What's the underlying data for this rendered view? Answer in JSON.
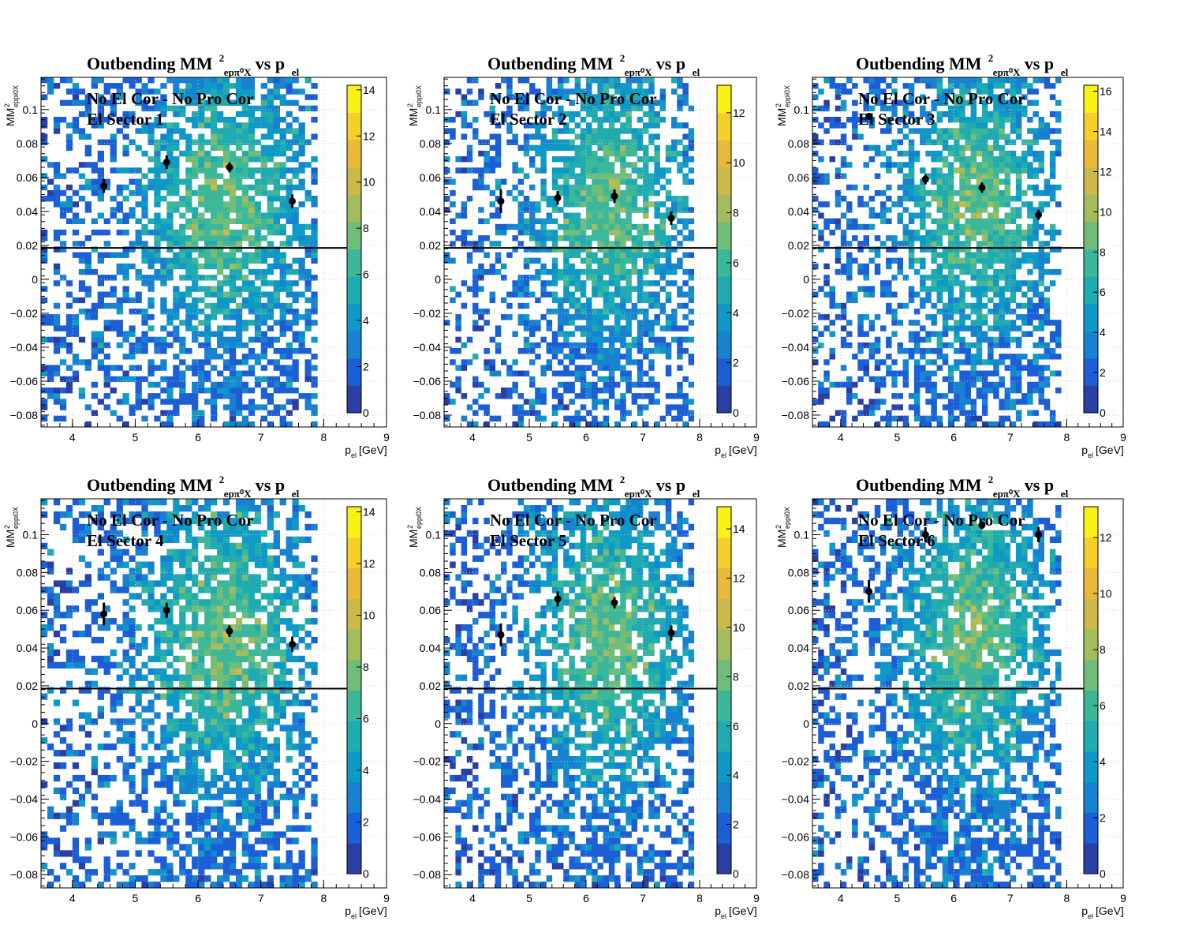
{
  "chart_data": [
    {
      "type": "heatmap",
      "title": {
        "main": "Outbending MM",
        "sup": "2",
        "sub": "epπ⁰X",
        "tail": " vs p",
        "tail_sub": "el"
      },
      "annotations": [
        "No El Cor - No Pro Cor",
        "El Sector 1"
      ],
      "xlabel": {
        "main": "p",
        "sub": "el",
        "tail": " [GeV]"
      },
      "ylabel": {
        "main": "MM",
        "sup": "2",
        "sub": "eppi0X"
      },
      "xlim": [
        3.5,
        9.0
      ],
      "ylim": [
        -0.087,
        0.119
      ],
      "xticks": [
        "4",
        "5",
        "6",
        "7",
        "8",
        "9"
      ],
      "yticks": [
        "−0.08",
        "−0.06",
        "−0.04",
        "−0.02",
        "0",
        "0.02",
        "0.04",
        "0.06",
        "0.08",
        "0.1"
      ],
      "zlim": [
        0,
        14.2
      ],
      "zticks": [
        "0",
        "2",
        "4",
        "6",
        "8",
        "10",
        "12",
        "14"
      ],
      "data_x_range": [
        3.5,
        7.9
      ],
      "cut_line_y": 0.0185,
      "points": [
        {
          "x": 4.5,
          "y": 0.055,
          "err": 0.004
        },
        {
          "x": 5.5,
          "y": 0.069,
          "err": 0.004
        },
        {
          "x": 6.5,
          "y": 0.066,
          "err": 0.003
        },
        {
          "x": 7.5,
          "y": 0.046,
          "err": 0.004
        }
      ],
      "grid": true
    },
    {
      "type": "heatmap",
      "title": {
        "main": "Outbending MM",
        "sup": "2",
        "sub": "epπ⁰X",
        "tail": " vs p",
        "tail_sub": "el"
      },
      "annotations": [
        "No El Cor - No Pro Cor",
        "El Sector 2"
      ],
      "xlabel": {
        "main": "p",
        "sub": "el",
        "tail": " [GeV]"
      },
      "ylabel": {
        "main": "MM",
        "sup": "2",
        "sub": "eppi0X"
      },
      "xlim": [
        3.5,
        9.0
      ],
      "ylim": [
        -0.087,
        0.119
      ],
      "xticks": [
        "4",
        "5",
        "6",
        "7",
        "8",
        "9"
      ],
      "yticks": [
        "−0.08",
        "−0.06",
        "−0.04",
        "−0.02",
        "0",
        "0.02",
        "0.04",
        "0.06",
        "0.08",
        "0.1"
      ],
      "zlim": [
        0,
        13.1
      ],
      "zticks": [
        "0",
        "2",
        "4",
        "6",
        "8",
        "10",
        "12"
      ],
      "data_x_range": [
        3.5,
        7.9
      ],
      "cut_line_y": 0.0185,
      "points": [
        {
          "x": 4.5,
          "y": 0.046,
          "err": 0.007
        },
        {
          "x": 5.5,
          "y": 0.048,
          "err": 0.004
        },
        {
          "x": 6.5,
          "y": 0.049,
          "err": 0.004
        },
        {
          "x": 7.5,
          "y": 0.036,
          "err": 0.004
        }
      ],
      "grid": true
    },
    {
      "type": "heatmap",
      "title": {
        "main": "Outbending MM",
        "sup": "2",
        "sub": "epπ⁰X",
        "tail": " vs p",
        "tail_sub": "el"
      },
      "annotations": [
        "No El Cor - No Pro Cor",
        "El Sector 3"
      ],
      "xlabel": {
        "main": "p",
        "sub": "el",
        "tail": " [GeV]"
      },
      "ylabel": {
        "main": "MM",
        "sup": "2",
        "sub": "eppi0X"
      },
      "xlim": [
        3.5,
        9.0
      ],
      "ylim": [
        -0.087,
        0.119
      ],
      "xticks": [
        "4",
        "5",
        "6",
        "7",
        "8",
        "9"
      ],
      "yticks": [
        "−0.08",
        "−0.06",
        "−0.04",
        "−0.02",
        "0",
        "0.02",
        "0.04",
        "0.06",
        "0.08",
        "0.1"
      ],
      "zlim": [
        0,
        16.3
      ],
      "zticks": [
        "0",
        "2",
        "4",
        "6",
        "8",
        "10",
        "12",
        "14",
        "16"
      ],
      "data_x_range": [
        3.5,
        7.9
      ],
      "cut_line_y": 0.0185,
      "points": [
        {
          "x": 4.5,
          "y": 0.096,
          "err": 0.002
        },
        {
          "x": 5.5,
          "y": 0.059,
          "err": 0.003
        },
        {
          "x": 6.5,
          "y": 0.054,
          "err": 0.003
        },
        {
          "x": 7.5,
          "y": 0.038,
          "err": 0.003
        }
      ],
      "grid": true
    },
    {
      "type": "heatmap",
      "title": {
        "main": "Outbending MM",
        "sup": "2",
        "sub": "epπ⁰X",
        "tail": " vs p",
        "tail_sub": "el"
      },
      "annotations": [
        "No El Cor - No Pro Cor",
        "El Sector 4"
      ],
      "xlabel": {
        "main": "p",
        "sub": "el",
        "tail": " [GeV]"
      },
      "ylabel": {
        "main": "MM",
        "sup": "2",
        "sub": "eppi0X"
      },
      "xlim": [
        3.5,
        9.0
      ],
      "ylim": [
        -0.087,
        0.119
      ],
      "xticks": [
        "4",
        "5",
        "6",
        "7",
        "8",
        "9"
      ],
      "yticks": [
        "−0.08",
        "−0.06",
        "−0.04",
        "−0.02",
        "0",
        "0.02",
        "0.04",
        "0.06",
        "0.08",
        "0.1"
      ],
      "zlim": [
        0,
        14.2
      ],
      "zticks": [
        "0",
        "2",
        "4",
        "6",
        "8",
        "10",
        "12",
        "14"
      ],
      "data_x_range": [
        3.5,
        7.9
      ],
      "cut_line_y": 0.0185,
      "points": [
        {
          "x": 4.5,
          "y": 0.058,
          "err": 0.006
        },
        {
          "x": 5.5,
          "y": 0.06,
          "err": 0.004
        },
        {
          "x": 6.5,
          "y": 0.049,
          "err": 0.003
        },
        {
          "x": 7.5,
          "y": 0.042,
          "err": 0.004
        }
      ],
      "grid": true
    },
    {
      "type": "heatmap",
      "title": {
        "main": "Outbending MM",
        "sup": "2",
        "sub": "epπ⁰X",
        "tail": " vs p",
        "tail_sub": "el"
      },
      "annotations": [
        "No El Cor - No Pro Cor",
        "El Sector 5"
      ],
      "xlabel": {
        "main": "p",
        "sub": "el",
        "tail": " [GeV]"
      },
      "ylabel": {
        "main": "MM",
        "sup": "2",
        "sub": "eppi0X"
      },
      "xlim": [
        3.5,
        9.0
      ],
      "ylim": [
        -0.087,
        0.119
      ],
      "xticks": [
        "4",
        "5",
        "6",
        "7",
        "8",
        "9"
      ],
      "yticks": [
        "−0.08",
        "−0.06",
        "−0.04",
        "−0.02",
        "0",
        "0.02",
        "0.04",
        "0.06",
        "0.08",
        "0.1"
      ],
      "zlim": [
        0,
        14.9
      ],
      "zticks": [
        "0",
        "2",
        "4",
        "6",
        "8",
        "10",
        "12",
        "14"
      ],
      "data_x_range": [
        3.5,
        7.9
      ],
      "cut_line_y": 0.0185,
      "points": [
        {
          "x": 4.5,
          "y": 0.047,
          "err": 0.006
        },
        {
          "x": 5.5,
          "y": 0.066,
          "err": 0.004
        },
        {
          "x": 6.5,
          "y": 0.064,
          "err": 0.003
        },
        {
          "x": 7.5,
          "y": 0.048,
          "err": 0.004
        }
      ],
      "grid": true
    },
    {
      "type": "heatmap",
      "title": {
        "main": "Outbending MM",
        "sup": "2",
        "sub": "epπ⁰X",
        "tail": " vs p",
        "tail_sub": "el"
      },
      "annotations": [
        "No El Cor - No Pro Cor",
        "El Sector 6"
      ],
      "xlabel": {
        "main": "p",
        "sub": "el",
        "tail": " [GeV]"
      },
      "ylabel": {
        "main": "MM",
        "sup": "2",
        "sub": "eppi0X"
      },
      "xlim": [
        3.5,
        9.0
      ],
      "ylim": [
        -0.087,
        0.119
      ],
      "xticks": [
        "4",
        "5",
        "6",
        "7",
        "8",
        "9"
      ],
      "yticks": [
        "−0.08",
        "−0.06",
        "−0.04",
        "−0.02",
        "0",
        "0.02",
        "0.04",
        "0.06",
        "0.08",
        "0.1"
      ],
      "zlim": [
        0,
        13.1
      ],
      "zticks": [
        "0",
        "2",
        "4",
        "6",
        "8",
        "10",
        "12"
      ],
      "data_x_range": [
        3.5,
        7.9
      ],
      "cut_line_y": 0.0185,
      "points": [
        {
          "x": 4.5,
          "y": 0.07,
          "err": 0.006
        },
        {
          "x": 5.5,
          "y": 0.1,
          "err": 0.004
        },
        {
          "x": 6.5,
          "y": 0.105,
          "err": 0.002
        },
        {
          "x": 7.5,
          "y": 0.1,
          "err": 0.004
        }
      ],
      "grid": true
    }
  ],
  "colors": {
    "palette": [
      "#2a3fa3",
      "#1b5ed6",
      "#1782d0",
      "#0e99c6",
      "#1fabb0",
      "#3db799",
      "#6fbd79",
      "#a1bd5e",
      "#cdb94a",
      "#eab93a",
      "#f6cf2b",
      "#f9f216"
    ],
    "points": "#000000",
    "cut_line": "#000000",
    "grid": "#c8c8c8"
  }
}
